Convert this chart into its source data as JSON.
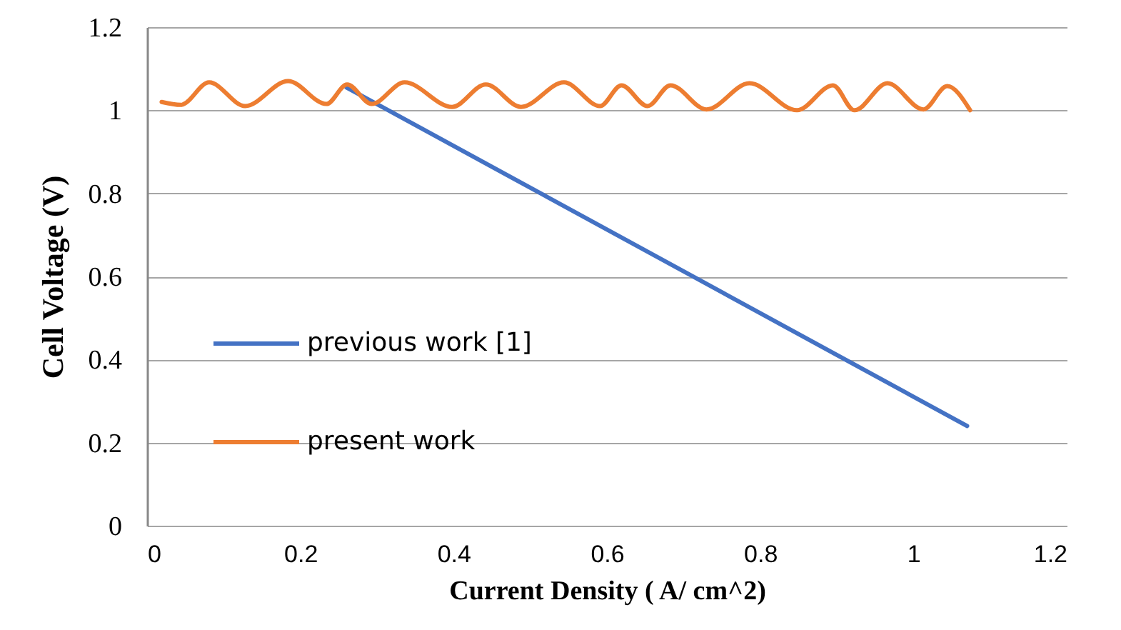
{
  "chart_data": {
    "type": "line",
    "xlabel": "Current Density  ( A/ cm^2)",
    "ylabel": "Cell Voltage (V)",
    "xlim": [
      0,
      1.2
    ],
    "xticks": [
      0,
      0.2,
      0.4,
      0.6,
      0.8,
      1,
      1.2
    ],
    "ylim": [
      0,
      1.2
    ],
    "yticks": [
      0,
      0.2,
      0.4,
      0.6,
      0.8,
      1,
      1.2
    ],
    "grid": "y",
    "legend": "left",
    "marker": "none",
    "line_style": "solid",
    "series": [
      {
        "name": "previous work [1]",
        "color": "#4472c4",
        "x": [
          0.26,
          1.07
        ],
        "values": [
          1.055,
          0.24
        ]
      },
      {
        "name": "present work",
        "color": "#ed7d31",
        "x": [
          0.019,
          0.044,
          0.081,
          0.128,
          0.184,
          0.234,
          0.261,
          0.293,
          0.336,
          0.398,
          0.442,
          0.488,
          0.544,
          0.591,
          0.619,
          0.653,
          0.683,
          0.73,
          0.786,
          0.848,
          0.895,
          0.923,
          0.966,
          1.013,
          1.044,
          1.074
        ],
        "values": [
          1.02,
          1.013,
          1.067,
          1.01,
          1.07,
          1.015,
          1.062,
          1.015,
          1.067,
          1.008,
          1.062,
          1.008,
          1.067,
          1.01,
          1.06,
          1.01,
          1.06,
          1.002,
          1.065,
          1,
          1.06,
          1,
          1.065,
          1.002,
          1.058,
          1
        ]
      }
    ]
  }
}
